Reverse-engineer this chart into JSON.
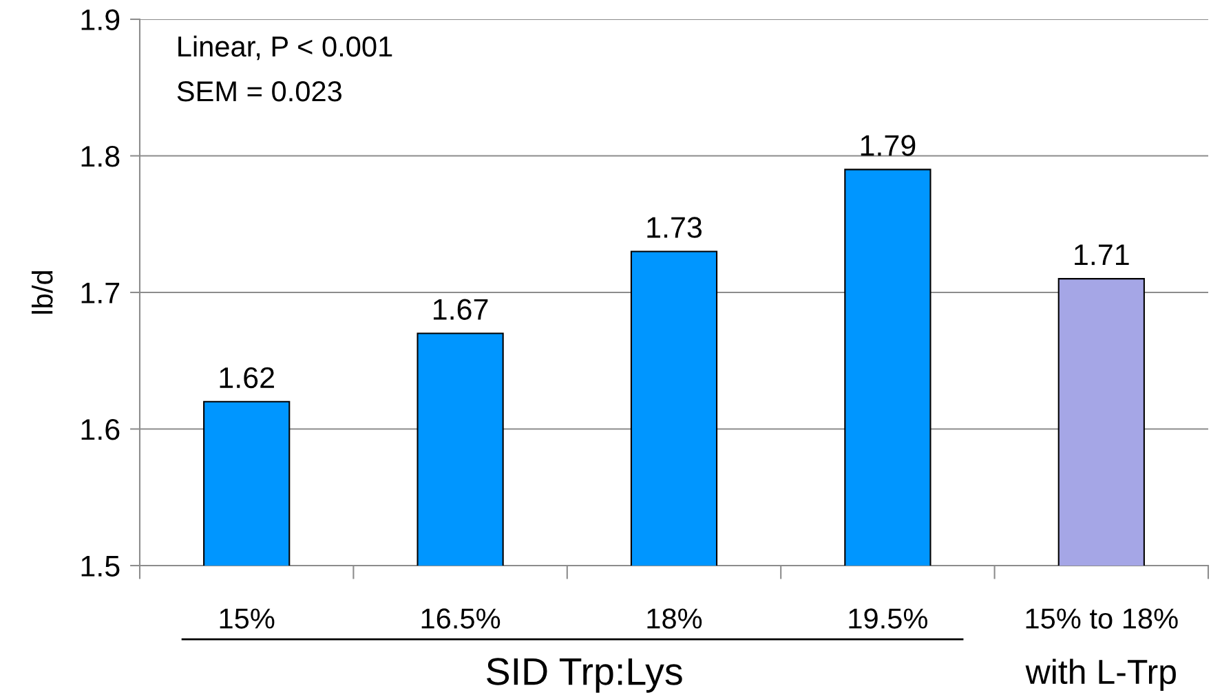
{
  "chart_data": {
    "type": "bar",
    "categories": [
      "15%",
      "16.5%",
      "18%",
      "19.5%",
      "15% to 18%\nwith L-Trp"
    ],
    "values": [
      1.62,
      1.67,
      1.73,
      1.79,
      1.71
    ],
    "colors": [
      "#0096ff",
      "#0096ff",
      "#0096ff",
      "#0096ff",
      "#a5a6e6"
    ],
    "xlabel": "SID Trp:Lys",
    "ylabel": "lb/d",
    "ylim": [
      1.5,
      1.9
    ],
    "yticks": [
      1.5,
      1.6,
      1.7,
      1.8,
      1.9
    ],
    "grid": "y",
    "data_labels": true,
    "annotations": [
      "Linear, P < 0.001",
      "SEM = 0.023"
    ]
  }
}
